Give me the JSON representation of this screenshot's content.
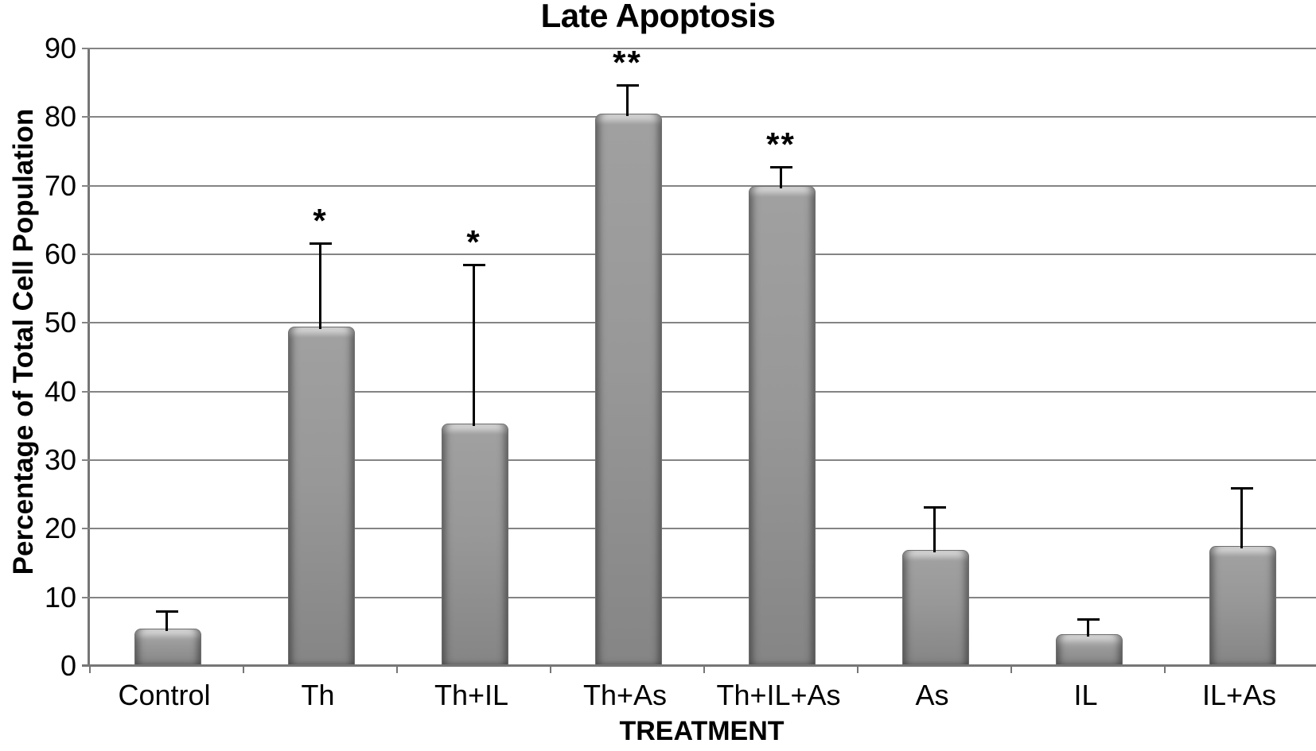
{
  "chart_data": {
    "type": "bar",
    "title": "Late Apoptosis",
    "xlabel": "TREATMENT",
    "ylabel": "Percentage of Total Cell Population",
    "categories": [
      "Control",
      "Th",
      "Th+IL",
      "Th+As",
      "Th+IL+As",
      "As",
      "IL",
      "IL+As"
    ],
    "values": [
      5.3,
      49.3,
      35.2,
      80.4,
      69.8,
      16.8,
      4.5,
      17.4
    ],
    "error_plus": [
      2.8,
      12.4,
      23.4,
      4.4,
      3.1,
      6.5,
      2.5,
      8.7
    ],
    "significance": [
      "",
      "*",
      "*",
      "**",
      "**",
      "",
      "",
      ""
    ],
    "ylim": [
      0,
      90
    ],
    "yticks": [
      0,
      10,
      20,
      30,
      40,
      50,
      60,
      70,
      80,
      90
    ],
    "grid": true,
    "legend_position": "none",
    "bar_color": "#969696",
    "gridline_color": "#848484",
    "axis_color": "#767676",
    "error_bar_color": "#000000",
    "text_color": "#000000",
    "significance_note": "* single asterisk above Th and Th+IL error bars; ** double asterisk above Th+As and Th+IL+As error bars"
  }
}
